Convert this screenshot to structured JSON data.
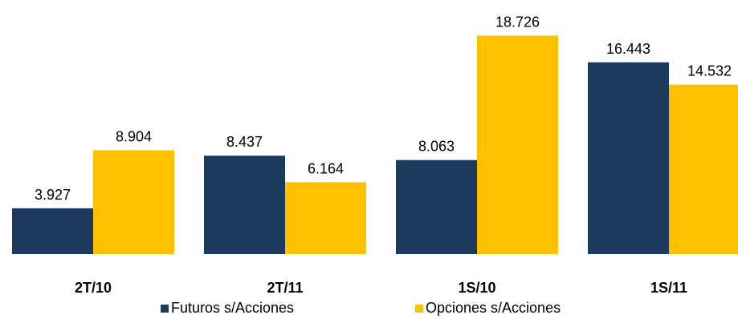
{
  "chart_data": {
    "type": "bar",
    "categories": [
      "2T/10",
      "2T/11",
      "1S/10",
      "1S/11"
    ],
    "series": [
      {
        "name": "Futuros s/Acciones",
        "values": [
          3.927,
          8.437,
          8.063,
          16.443
        ],
        "labels": [
          "3.927",
          "8.437",
          "8.063",
          "16.443"
        ],
        "color": "#1c3a5e"
      },
      {
        "name": "Opciones s/Acciones",
        "values": [
          8.904,
          6.164,
          18.726,
          14.532
        ],
        "labels": [
          "8.904",
          "6.164",
          "18.726",
          "14.532"
        ],
        "color": "#ffc000"
      }
    ],
    "ylim": [
      0,
      20
    ],
    "grid": false,
    "legend_position": "bottom"
  }
}
